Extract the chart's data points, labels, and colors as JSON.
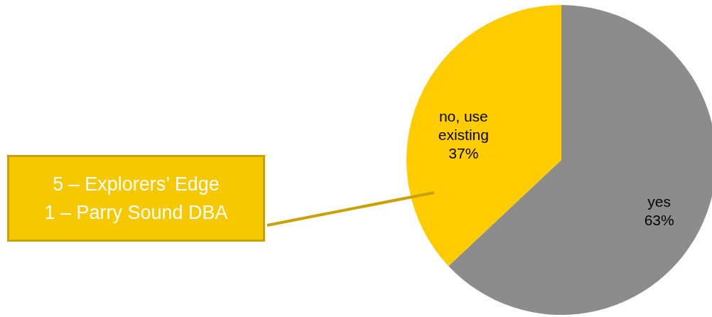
{
  "chart_data": {
    "type": "pie",
    "categories": [
      "yes",
      "no, use existing"
    ],
    "values": [
      63,
      37
    ],
    "colors": [
      "#8c8c8c",
      "#ffcc00"
    ],
    "value_labels": [
      "63%",
      "37%"
    ],
    "annotations": [
      "5 – Explorers’ Edge",
      "1 – Parry Sound DBA"
    ]
  }
}
